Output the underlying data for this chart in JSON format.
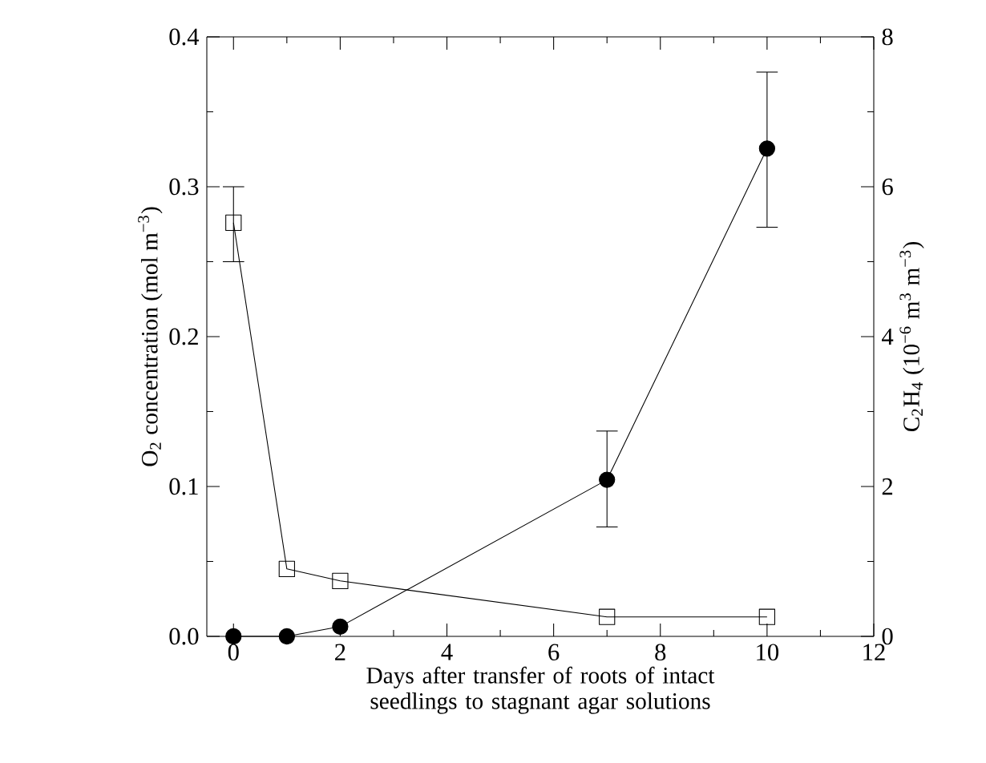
{
  "chart_data": {
    "type": "line",
    "xlabel": "Days after transfer of roots of intact seedlings to stagnant agar solutions",
    "ylabel": "O$_{2}$ concentration (mol m$^{−3}$)",
    "y2label": "C$_{2}$H$_{4}$ (10$^{−6}$ m$^{3}$ m$^{−3}$)",
    "xlim": [
      -0.5,
      12
    ],
    "xticks": [
      0,
      2,
      4,
      6,
      8,
      10,
      12
    ],
    "ylim": [
      0,
      0.4
    ],
    "yticks": [
      {
        "value": 0,
        "label": "0.0"
      },
      0.1,
      0.2,
      0.3,
      0.4
    ],
    "y2lim": [
      0,
      8
    ],
    "y2ticks": [
      0,
      2,
      4,
      6,
      8
    ],
    "grid": false,
    "series": [
      {
        "color": "#000000",
        "marker": "square",
        "x": [
          0,
          1,
          2,
          7,
          10
        ],
        "values": [
          0.276,
          0.045,
          0.037,
          0.013,
          0.013
        ],
        "errors": [
          [
            0.25,
            0.3
          ],
          null,
          null,
          null,
          null
        ]
      },
      {
        "color": "#000000",
        "marker": "circle",
        "axis": "y2",
        "x": [
          0,
          1,
          2,
          7,
          10
        ],
        "values": [
          0,
          0,
          0.13,
          2.09,
          6.51
        ],
        "errors": [
          null,
          null,
          null,
          [
            1.46,
            2.74
          ],
          [
            5.46,
            7.53
          ]
        ]
      }
    ]
  }
}
